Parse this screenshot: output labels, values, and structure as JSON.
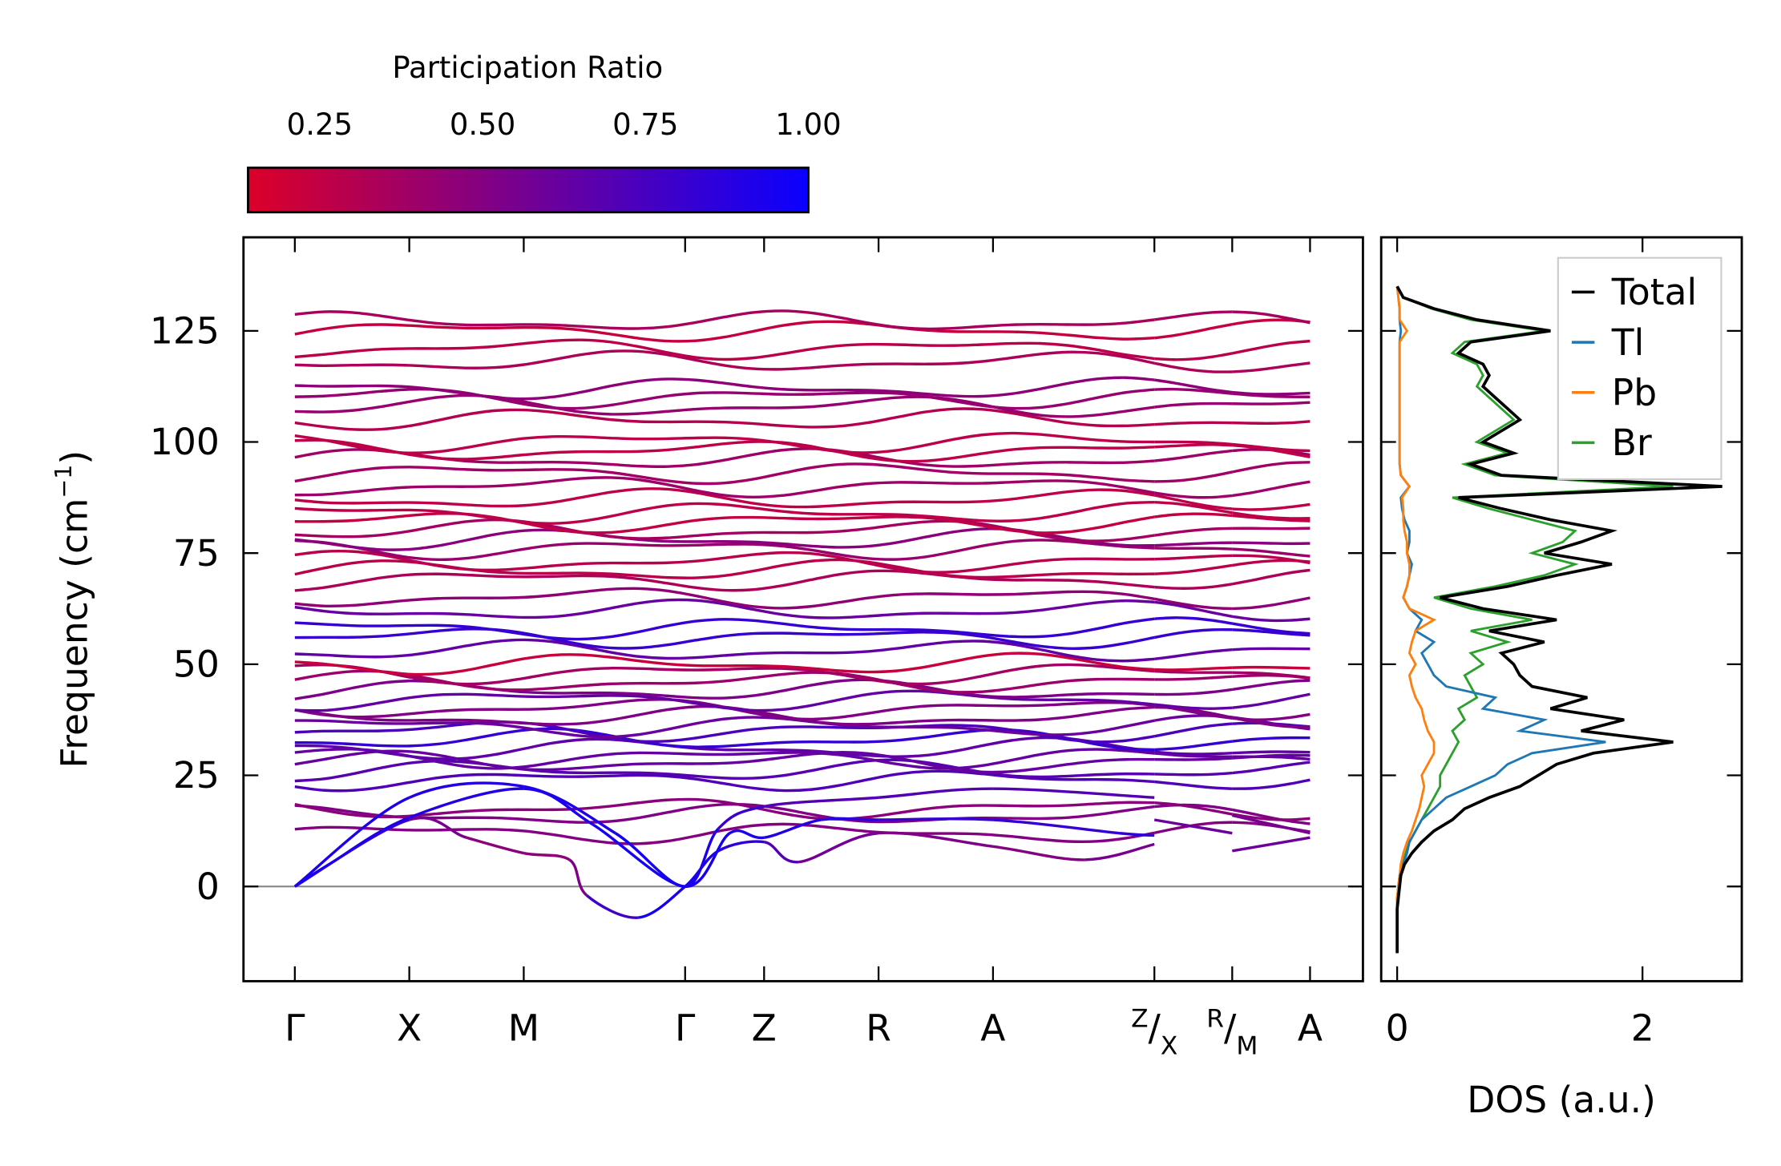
{
  "chart_data": [
    {
      "type": "line",
      "title": "",
      "ylabel_parts": [
        "Frequency (cm",
        "−1",
        ")"
      ],
      "ylim": [
        -21,
        146
      ],
      "yticks": [
        0,
        25,
        50,
        75,
        100,
        125
      ],
      "xlim": [
        -0.45,
        9.33
      ],
      "kpoints": [
        {
          "label": "Γ",
          "k": 0
        },
        {
          "label": "X",
          "k": 1
        },
        {
          "label": "M",
          "k": 2
        },
        {
          "label": "Γ",
          "k": 3.41
        },
        {
          "label": "Z",
          "k": 4.1
        },
        {
          "label": "R",
          "k": 5.1
        },
        {
          "label": "A",
          "k": 6.1
        },
        {
          "label": "Z/X",
          "k": 7.51
        },
        {
          "label": "R/M",
          "k": 8.19
        },
        {
          "label": "A",
          "k": 8.87
        }
      ],
      "segments": [
        [
          0,
          7.51
        ],
        [
          7.51,
          8.19
        ],
        [
          8.19,
          8.87
        ]
      ],
      "colorbar": {
        "title": "Participation Ratio",
        "range": [
          0.14,
          1.0
        ],
        "ticks": [
          0.25,
          0.5,
          0.75,
          1.0
        ],
        "tick_labels": [
          "0.25",
          "0.50",
          "0.75",
          "1.00"
        ],
        "low_color": "#dc0028",
        "high_color": "#0a00ff"
      },
      "acoustic_bands": [
        [
          [
            0,
            0,
            0.95
          ],
          [
            1,
            15,
            0.6
          ],
          [
            1.5,
            11,
            0.5
          ],
          [
            2,
            7.5,
            0.45
          ],
          [
            2.4,
            6,
            0.45
          ],
          [
            2.55,
            -2,
            0.6
          ],
          [
            3.0,
            -7,
            0.95
          ],
          [
            3.41,
            0,
            0.95
          ],
          [
            3.7,
            8,
            0.9
          ],
          [
            4.1,
            10,
            0.8
          ],
          [
            4.4,
            5.5,
            0.6
          ],
          [
            5.1,
            12,
            0.55
          ],
          [
            6.1,
            9,
            0.5
          ],
          [
            6.9,
            6,
            0.5
          ],
          [
            7.51,
            9.5,
            0.6
          ]
        ],
        [
          [
            0,
            0,
            0.95
          ],
          [
            0.3,
            5,
            0.95
          ],
          [
            1,
            15.5,
            0.9
          ],
          [
            2,
            22,
            0.9
          ],
          [
            2.6,
            14,
            0.95
          ],
          [
            3.41,
            0,
            0.95
          ],
          [
            3.8,
            12,
            0.95
          ],
          [
            4.1,
            11,
            0.9
          ],
          [
            4.6,
            15,
            0.9
          ],
          [
            5.1,
            15,
            0.85
          ],
          [
            6.1,
            15,
            0.8
          ],
          [
            7.2,
            12,
            0.85
          ],
          [
            7.51,
            11.5,
            0.85
          ]
        ],
        [
          [
            0,
            0,
            0.95
          ],
          [
            1,
            20,
            0.9
          ],
          [
            2,
            22.5,
            0.9
          ],
          [
            2.8,
            12,
            0.95
          ],
          [
            3.41,
            0,
            0.95
          ],
          [
            3.7,
            13,
            0.9
          ],
          [
            4.1,
            18,
            0.7
          ],
          [
            5.1,
            20,
            0.7
          ],
          [
            6.1,
            22,
            0.7
          ],
          [
            7.51,
            20,
            0.7
          ]
        ],
        [
          [
            7.51,
            15,
            0.6
          ],
          [
            8.19,
            12,
            0.6
          ]
        ],
        [
          [
            8.19,
            8,
            0.6
          ],
          [
            8.87,
            11,
            0.6
          ]
        ],
        [
          [
            8.19,
            16,
            0.55
          ],
          [
            8.87,
            12,
            0.55
          ]
        ]
      ],
      "optical_bands": [
        [
          12,
          0.5
        ],
        [
          16,
          0.45
        ],
        [
          17.5,
          0.4
        ],
        [
          24,
          0.7
        ],
        [
          26,
          0.75
        ],
        [
          28,
          0.7
        ],
        [
          29,
          0.65
        ],
        [
          31,
          0.6
        ],
        [
          33,
          0.75
        ],
        [
          35,
          0.7
        ],
        [
          36,
          0.65
        ],
        [
          38,
          0.6
        ],
        [
          40,
          0.55
        ],
        [
          42,
          0.6
        ],
        [
          44,
          0.45
        ],
        [
          46,
          0.35
        ],
        [
          48,
          0.4
        ],
        [
          50,
          0.3
        ],
        [
          53,
          0.7
        ],
        [
          56,
          0.8
        ],
        [
          58,
          0.75
        ],
        [
          62,
          0.55
        ],
        [
          65,
          0.45
        ],
        [
          69,
          0.4
        ],
        [
          71,
          0.35
        ],
        [
          73,
          0.3
        ],
        [
          76,
          0.35
        ],
        [
          78,
          0.4
        ],
        [
          80,
          0.35
        ],
        [
          82,
          0.3
        ],
        [
          84,
          0.35
        ],
        [
          87,
          0.3
        ],
        [
          90,
          0.35
        ],
        [
          93,
          0.3
        ],
        [
          96,
          0.35
        ],
        [
          98,
          0.3
        ],
        [
          100,
          0.35
        ],
        [
          105,
          0.35
        ],
        [
          108,
          0.4
        ],
        [
          110,
          0.35
        ],
        [
          112,
          0.4
        ],
        [
          118,
          0.35
        ],
        [
          121,
          0.35
        ],
        [
          125,
          0.3
        ],
        [
          127,
          0.35
        ]
      ]
    },
    {
      "type": "line",
      "xlabel": "DOS (a.u.)",
      "xlim": [
        -0.13,
        2.82
      ],
      "xticks": [
        0,
        2
      ],
      "legend_position": "top-right",
      "freq_start": -15,
      "freq_step": 2.5,
      "series": [
        {
          "name": "Total",
          "color": "#000000",
          "values": [
            0,
            0,
            0,
            0,
            0,
            0.01,
            0.02,
            0.03,
            0.06,
            0.12,
            0.2,
            0.3,
            0.45,
            0.55,
            0.75,
            1.0,
            1.15,
            1.3,
            1.6,
            2.25,
            1.5,
            1.85,
            1.25,
            1.55,
            1.1,
            1.0,
            0.95,
            0.85,
            1.2,
            0.75,
            1.3,
            0.7,
            0.35,
            0.9,
            1.3,
            1.75,
            1.2,
            1.5,
            1.75,
            1.25,
            0.85,
            0.5,
            2.65,
            0.85,
            0.6,
            0.95,
            0.7,
            0.85,
            1.0,
            0.9,
            0.8,
            0.7,
            0.75,
            0.7,
            0.5,
            0.6,
            1.25,
            0.65,
            0.3,
            0.05,
            0
          ]
        },
        {
          "name": "Tl",
          "color": "#1f77b4",
          "values": [
            0,
            0,
            0,
            0,
            0,
            0,
            0.01,
            0.02,
            0.05,
            0.08,
            0.1,
            0.15,
            0.2,
            0.3,
            0.4,
            0.6,
            0.8,
            0.9,
            1.1,
            1.7,
            1.0,
            1.2,
            0.7,
            0.8,
            0.4,
            0.3,
            0.25,
            0.2,
            0.3,
            0.15,
            0.2,
            0.1,
            0.05,
            0.08,
            0.1,
            0.12,
            0.08,
            0.1,
            0.1,
            0.06,
            0.04,
            0.03,
            0.1,
            0.03,
            0.02,
            0.02,
            0.02,
            0.02,
            0.02,
            0.02,
            0.02,
            0.02,
            0.02,
            0.02,
            0.02,
            0.02,
            0.03,
            0.02,
            0.02,
            0.01,
            0
          ]
        },
        {
          "name": "Pb",
          "color": "#ff7f0e",
          "values": [
            0,
            0,
            0,
            0,
            0,
            0,
            0.01,
            0.02,
            0.03,
            0.05,
            0.08,
            0.12,
            0.15,
            0.18,
            0.2,
            0.22,
            0.2,
            0.25,
            0.3,
            0.3,
            0.25,
            0.22,
            0.2,
            0.15,
            0.12,
            0.1,
            0.15,
            0.1,
            0.12,
            0.15,
            0.3,
            0.1,
            0.05,
            0.08,
            0.1,
            0.1,
            0.08,
            0.08,
            0.06,
            0.05,
            0.05,
            0.04,
            0.1,
            0.03,
            0.02,
            0.02,
            0.02,
            0.02,
            0.02,
            0.02,
            0.02,
            0.02,
            0.02,
            0.02,
            0.02,
            0.02,
            0.08,
            0.02,
            0.02,
            0.01,
            0
          ]
        },
        {
          "name": "Br",
          "color": "#2ca02c",
          "values": [
            0,
            0,
            0,
            0,
            0,
            0,
            0.01,
            0.02,
            0.04,
            0.07,
            0.1,
            0.15,
            0.2,
            0.25,
            0.3,
            0.35,
            0.35,
            0.4,
            0.45,
            0.5,
            0.45,
            0.55,
            0.5,
            0.65,
            0.6,
            0.55,
            0.7,
            0.6,
            0.9,
            0.6,
            1.1,
            0.6,
            0.3,
            0.8,
            1.2,
            1.45,
            1.1,
            1.35,
            1.45,
            1.1,
            0.75,
            0.45,
            2.25,
            0.8,
            0.55,
            0.9,
            0.65,
            0.8,
            0.95,
            0.85,
            0.75,
            0.65,
            0.7,
            0.65,
            0.45,
            0.55,
            1.2,
            0.6,
            0.28,
            0.05,
            0
          ]
        }
      ]
    }
  ]
}
